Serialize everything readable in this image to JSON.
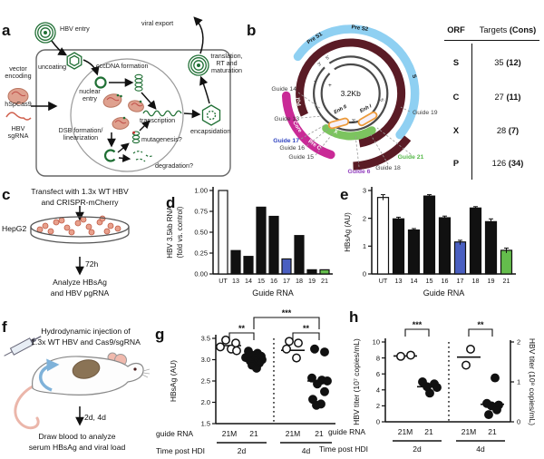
{
  "panel_letters": {
    "a": "a",
    "b": "b",
    "c": "c",
    "d": "d",
    "e": "e",
    "f": "f",
    "g": "g",
    "h": "h"
  },
  "panel_a": {
    "hbv_entry": "HBV entry",
    "viral_export": "viral export",
    "uncoating": "uncoating",
    "cccdna_formation": "cccDNA formation",
    "nuclear_entry_1": "nuclear",
    "nuclear_entry_2": "entry",
    "transcription": "transcription",
    "dsb_1": "DSB formation/",
    "dsb_2": "linearization",
    "mutagenesis": "mutagenesis?",
    "degradation": "degradation?",
    "encapsidation": "encapsidation",
    "translation_1": "translation,",
    "translation_2": "RT and",
    "translation_3": "maturation",
    "vector_1": "vector",
    "vector_2": "encoding",
    "cas9": "hSpCas9",
    "sgrna_1": "HBV",
    "sgrna_2": "sgRNA"
  },
  "panel_b": {
    "center": "3.2Kb",
    "pre_s1": "Pre S1",
    "pre_s2": "Pre S2",
    "s": "S",
    "pol": "Pol",
    "core": "Core",
    "pre_c": "Pre C",
    "x": "X",
    "enh2": "Enh II",
    "enh1": "Enh I",
    "plus": "+",
    "minus": "-",
    "three_prime": "3'",
    "five_prime": "5'",
    "guides": [
      {
        "label": "Guide 14",
        "color": "#3d3d3d"
      },
      {
        "label": "Guide 13",
        "color": "#3d3d3d"
      },
      {
        "label": "Guide 17",
        "color": "#2f43c0"
      },
      {
        "label": "Guide 16",
        "color": "#3d3d3d"
      },
      {
        "label": "Guide 15",
        "color": "#3d3d3d"
      },
      {
        "label": "Guide 6",
        "color": "#9340bf"
      },
      {
        "label": "Guide 18",
        "color": "#3d3d3d"
      },
      {
        "label": "Guide 21",
        "color": "#55b849"
      },
      {
        "label": "Guide 19",
        "color": "#3d3d3d"
      }
    ]
  },
  "orf_table": {
    "col1": "ORF",
    "col2a": "Targets",
    "col2b": "(Cons)",
    "rows": [
      {
        "orf": "S",
        "num": "35",
        "cons": "(12)"
      },
      {
        "orf": "C",
        "num": "27",
        "cons": "(11)"
      },
      {
        "orf": "X",
        "num": "28",
        "cons": "(7)"
      },
      {
        "orf": "P",
        "num": "126",
        "cons": "(34)"
      }
    ]
  },
  "panel_c": {
    "line1": "Transfect with 1.3x WT HBV",
    "line2": "and CRISPR-mCherry",
    "cell_line": "HepG2",
    "duration": "72h",
    "analyze1": "Analyze HBsAg",
    "analyze2": "and HBV pgRNA"
  },
  "panel_f": {
    "line1": "Hydrodynamic injection of",
    "line2": "1.3x WT HBV and Cas9/sgRNA",
    "duration": "2d, 4d",
    "analyze1": "Draw blood to analyze",
    "analyze2": "serum HBsAg and viral load"
  },
  "chart_data": [
    {
      "id": "d",
      "type": "bar",
      "ylabel": "HBV 3.5kb RNA (fold vs. control)",
      "ylabel_lines": [
        "HBV 3.5kb RNA",
        "(fold vs. control)"
      ],
      "xlabel": "Guide RNA",
      "categories": [
        "UT",
        "13",
        "14",
        "15",
        "16",
        "17",
        "18",
        "19",
        "21"
      ],
      "values": [
        1.0,
        0.28,
        0.21,
        0.8,
        0.69,
        0.18,
        0.46,
        0.05,
        0.05
      ],
      "bar_colors": [
        "#ffffff",
        "#111111",
        "#111111",
        "#111111",
        "#111111",
        "#4a5fc1",
        "#111111",
        "#111111",
        "#64bd4c"
      ],
      "ylim": [
        0,
        1.0
      ],
      "yticks": [
        0,
        0.25,
        0.5,
        0.75,
        1.0
      ],
      "ytick_labels": [
        "0.00",
        "0.25",
        "0.50",
        "0.75",
        "1.00"
      ]
    },
    {
      "id": "e",
      "type": "bar",
      "ylabel": "HBsAg (AU)",
      "ylabel_lines": [
        "HBsAg (AU)"
      ],
      "xlabel": "Guide RNA",
      "categories": [
        "UT",
        "13",
        "14",
        "15",
        "16",
        "17",
        "18",
        "19",
        "21"
      ],
      "values": [
        2.75,
        1.98,
        1.58,
        2.8,
        2.02,
        1.15,
        2.37,
        1.88,
        0.85
      ],
      "errors": [
        0.1,
        0.06,
        0.05,
        0.05,
        0.06,
        0.06,
        0.05,
        0.1,
        0.08
      ],
      "bar_colors": [
        "#ffffff",
        "#111111",
        "#111111",
        "#111111",
        "#111111",
        "#4a5fc1",
        "#111111",
        "#111111",
        "#64bd4c"
      ],
      "ylim": [
        0,
        3
      ],
      "yticks": [
        0,
        1,
        2,
        3
      ],
      "ytick_labels": [
        "0",
        "1",
        "2",
        "3"
      ]
    },
    {
      "id": "g",
      "type": "scatter",
      "ylabel": "HBsAg (AU)",
      "ylim": [
        1.5,
        3.5
      ],
      "yticks": [
        1.5,
        2.0,
        2.5,
        3.0,
        3.5
      ],
      "ytick_labels": [
        "1.5",
        "2.0",
        "2.5",
        "3.0",
        "3.5"
      ],
      "row_labels": {
        "guide": "guide RNA",
        "time": "Time post HDI"
      },
      "time_groups": [
        "2d",
        "4d"
      ],
      "groups": [
        {
          "guide": "21M",
          "time": "2d",
          "style": "open",
          "points": [
            3.46,
            3.39,
            3.3,
            3.25,
            3.21
          ],
          "median": 3.33
        },
        {
          "guide": "21",
          "time": "2d",
          "style": "filled",
          "points": [
            3.2,
            3.15,
            3.1,
            3.08,
            3.05,
            3.02,
            3.0,
            2.97,
            2.92,
            2.87,
            2.8
          ],
          "median": 3.0
        },
        {
          "guide": "21M",
          "time": "4d",
          "style": "open",
          "points": [
            3.43,
            3.39,
            3.25,
            3.04
          ],
          "median": 3.22
        },
        {
          "guide": "21",
          "time": "4d",
          "style": "filled",
          "points": [
            3.25,
            3.18,
            2.57,
            2.52,
            2.5,
            2.43,
            2.25,
            2.07,
            1.96,
            1.93
          ],
          "median": 2.5
        }
      ],
      "significance": [
        {
          "from": 0,
          "to": 1,
          "label": "**"
        },
        {
          "from": 2,
          "to": 3,
          "label": "**"
        },
        {
          "from": 1,
          "to": 3,
          "label": "***"
        }
      ]
    },
    {
      "id": "h",
      "type": "scatter",
      "ylabel": "HBV titer (10⁷ copies/mL)",
      "ylabel_right": "HBV titer (10⁸ copies/mL)",
      "ylim": [
        0,
        10
      ],
      "yticks": [
        0,
        2,
        4,
        6,
        8,
        10
      ],
      "ytick_labels": [
        "0",
        "2",
        "4",
        "6",
        "8",
        "10"
      ],
      "ylim_right": [
        0,
        2
      ],
      "yticks_right": [
        0,
        1,
        2
      ],
      "ytick_labels_right": [
        "0",
        "1",
        "2"
      ],
      "row_labels": {
        "guide": "guide RNA",
        "time": "Time post HDI"
      },
      "time_groups": [
        "2d",
        "4d"
      ],
      "groups": [
        {
          "guide": "21M",
          "time": "2d",
          "style": "open",
          "points": [
            8.2,
            8.35
          ],
          "median": 8.25
        },
        {
          "guide": "21",
          "time": "2d",
          "style": "filled",
          "points": [
            5.0,
            4.75,
            4.4,
            4.3,
            3.6
          ],
          "median": 4.4
        },
        {
          "guide": "21M",
          "time": "4d",
          "style": "open",
          "points": [
            9.1,
            7.1
          ],
          "median": 8.1
        },
        {
          "guide": "21",
          "time": "4d",
          "style": "filled",
          "points": [
            5.5,
            2.3,
            2.1,
            2.0,
            1.5,
            0.9
          ],
          "median": 2.2
        }
      ],
      "significance": [
        {
          "from": 0,
          "to": 1,
          "label": "***"
        },
        {
          "from": 2,
          "to": 3,
          "label": "**"
        }
      ]
    }
  ]
}
